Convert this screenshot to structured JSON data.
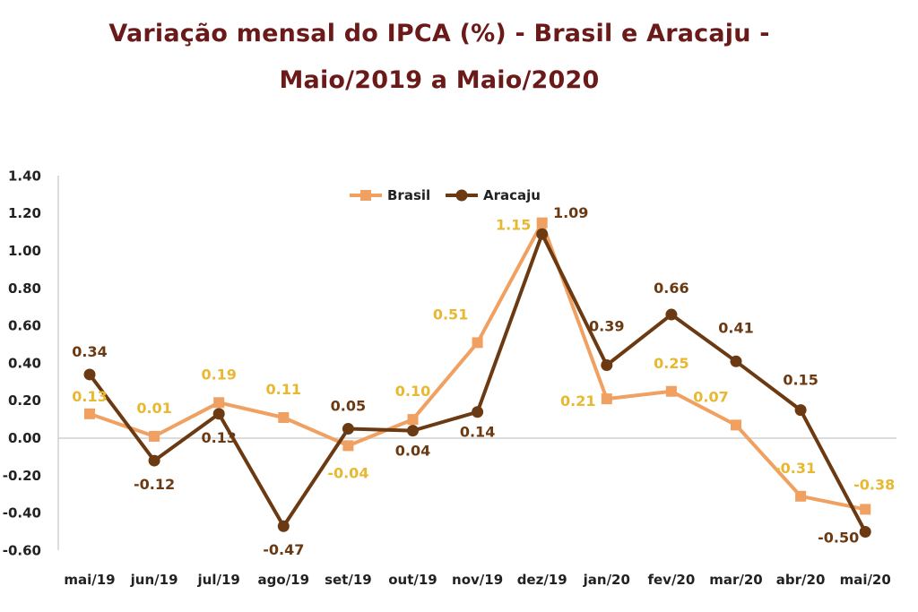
{
  "header": {
    "title_line1": "Variação mensal do IPCA (%) - Brasil e Aracaju -",
    "title_line2": "Maio/2019 a  Maio/2020"
  },
  "chart_data": {
    "type": "line",
    "title": "Variação mensal do IPCA (%) - Brasil e Aracaju - Maio/2019 a  Maio/2020",
    "categories": [
      "mai/19",
      "jun/19",
      "jul/19",
      "ago/19",
      "set/19",
      "out/19",
      "nov/19",
      "dez/19",
      "jan/20",
      "fev/20",
      "mar/20",
      "abr/20",
      "mai/20"
    ],
    "y_ticks": [
      "1.40",
      "1.20",
      "1.00",
      "0.80",
      "0.60",
      "0.40",
      "0.20",
      "0.00",
      "-0.20",
      "-0.40",
      "-0.60"
    ],
    "ylim": [
      -0.6,
      1.4
    ],
    "grid": false,
    "legend_position": "top-center",
    "series": [
      {
        "name": "Brasil",
        "color": "#f0a060",
        "label_color": "#e8b830",
        "marker": "square",
        "values": [
          0.13,
          0.01,
          0.19,
          0.11,
          -0.04,
          0.1,
          0.51,
          1.15,
          0.21,
          0.25,
          0.07,
          -0.31,
          -0.38
        ],
        "labels": [
          "0.13",
          "0.01",
          "0.19",
          "0.11",
          "-0.04",
          "0.10",
          "0.51",
          "1.15",
          "0.21",
          "0.25",
          "0.07",
          "-0.31",
          "-0.38"
        ]
      },
      {
        "name": "Aracaju",
        "color": "#6b3a12",
        "label_color": "#6b3a12",
        "marker": "circle",
        "values": [
          0.34,
          -0.12,
          0.13,
          -0.47,
          0.05,
          0.04,
          0.14,
          1.09,
          0.39,
          0.66,
          0.41,
          0.15,
          -0.5
        ],
        "labels": [
          "0.34",
          "-0.12",
          "0.13",
          "-0.47",
          "0.05",
          "0.04",
          "0.14",
          "1.09",
          "0.39",
          "0.66",
          "0.41",
          "0.15",
          "-0.50"
        ]
      }
    ]
  }
}
